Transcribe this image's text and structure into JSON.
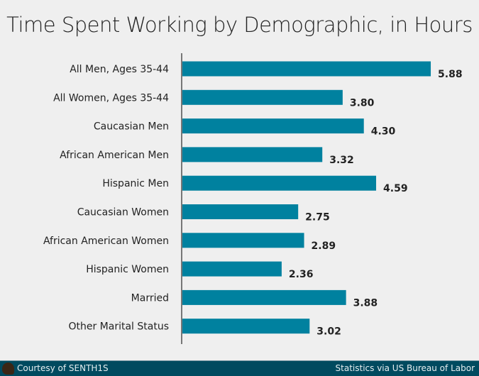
{
  "chart_data": {
    "type": "bar",
    "orientation": "horizontal",
    "title": "Time Spent Working by Demographic, in Hours",
    "categories": [
      "All Men, Ages 35-44",
      "All Women, Ages 35-44",
      "Caucasian Men",
      "African American Men",
      "Hispanic Men",
      "Caucasian Women",
      "African American Women",
      "Hispanic Women",
      "Married",
      "Other Marital Status"
    ],
    "values": [
      5.88,
      3.8,
      4.3,
      3.32,
      4.59,
      2.75,
      2.89,
      2.36,
      3.88,
      3.02
    ],
    "data_labels": [
      "5.88",
      "3.80",
      "4.30",
      "3.32",
      "4.59",
      "2.75",
      "2.89",
      "2.36",
      "3.88",
      "3.02"
    ],
    "xlim": [
      0,
      6.5
    ],
    "grid": false,
    "bar_color": "#00819f"
  },
  "footer": {
    "left": "Courtesy of SENTH1S",
    "right": "Statistics via US Bureau of Labor"
  }
}
